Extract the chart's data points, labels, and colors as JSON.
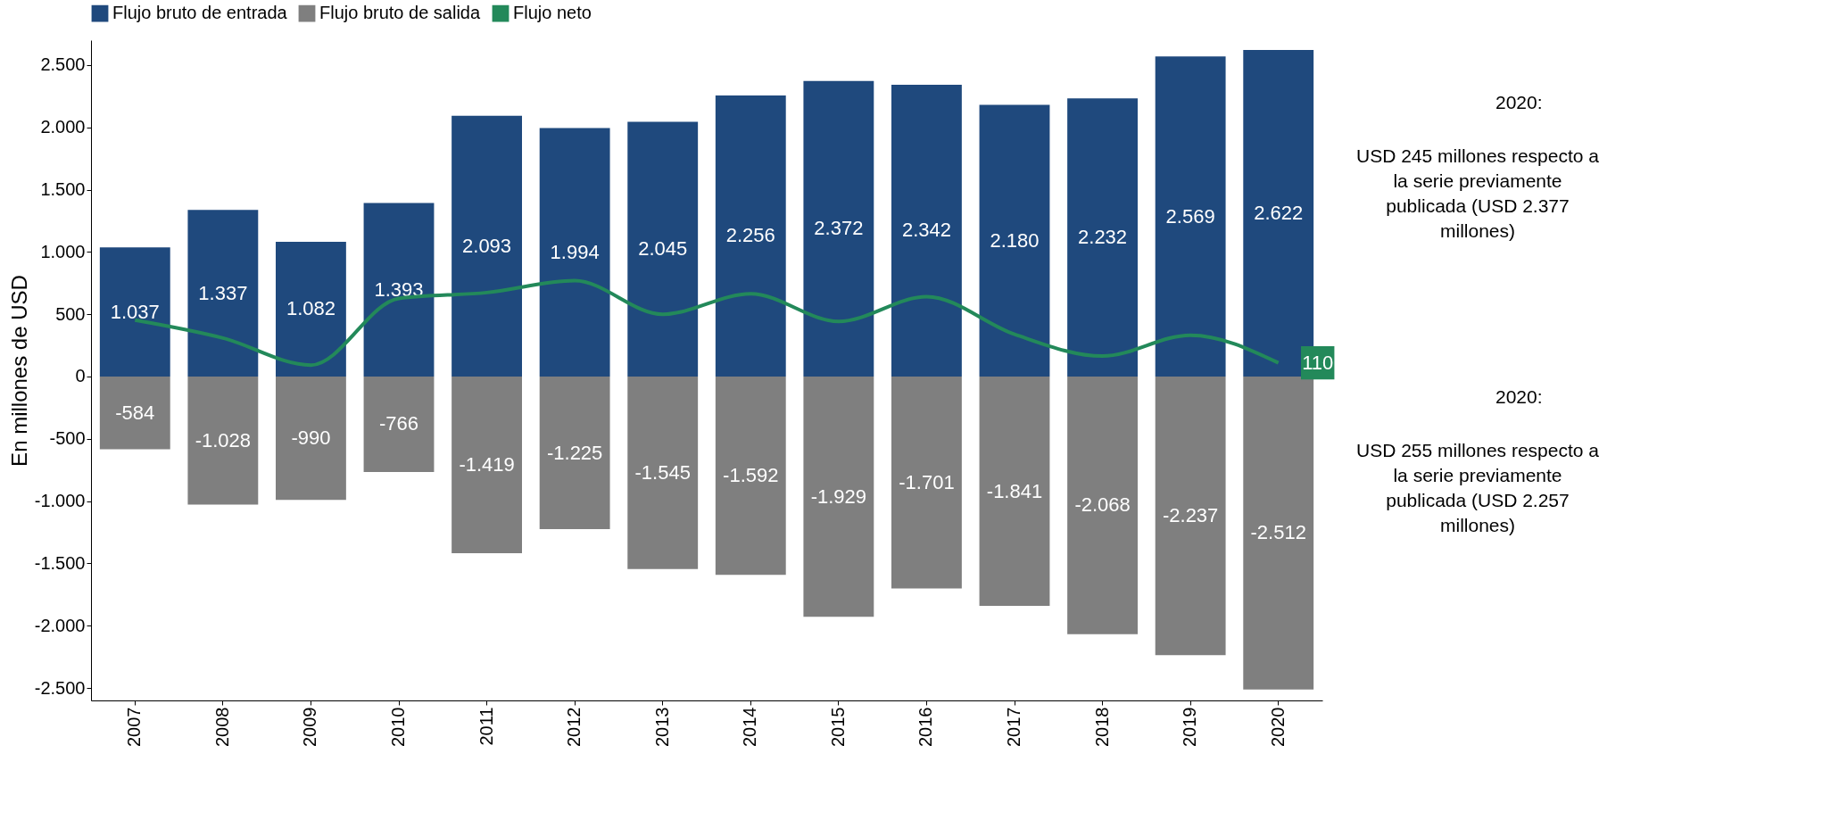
{
  "chart_data": {
    "type": "bar",
    "stacked": true,
    "ylabel": "En millones de USD",
    "categories": [
      "2007",
      "2008",
      "2009",
      "2010",
      "2011",
      "2012",
      "2013",
      "2014",
      "2015",
      "2016",
      "2017",
      "2018",
      "2019",
      "2020"
    ],
    "series": [
      {
        "name": "Flujo bruto de entrada",
        "color": "#1f497d",
        "values": [
          1037,
          1337,
          1082,
          1393,
          2093,
          1994,
          2045,
          2256,
          2372,
          2342,
          2180,
          2232,
          2569,
          2622
        ],
        "value_labels": [
          "1.037",
          "1.337",
          "1.082",
          "1.393",
          "2.093",
          "1.994",
          "2.045",
          "2.256",
          "2.372",
          "2.342",
          "2.180",
          "2.232",
          "2.569",
          "2.622"
        ]
      },
      {
        "name": "Flujo bruto de salida",
        "color": "#7f7f7f",
        "values": [
          -584,
          -1028,
          -990,
          -766,
          -1419,
          -1225,
          -1545,
          -1592,
          -1929,
          -1701,
          -1841,
          -2068,
          -2237,
          -2512
        ],
        "value_labels": [
          "-584",
          "-1.028",
          "-990",
          "-766",
          "-1.419",
          "-1.225",
          "-1.545",
          "-1.592",
          "-1.929",
          "-1.701",
          "-1.841",
          "-2.068",
          "-2.237",
          "-2.512"
        ]
      },
      {
        "name": "Flujo neto",
        "type": "line",
        "color": "#23895a",
        "values": [
          453,
          309,
          92,
          627,
          674,
          769,
          500,
          664,
          443,
          641,
          339,
          164,
          332,
          110
        ],
        "value_labels": [
          null,
          null,
          null,
          null,
          null,
          null,
          null,
          null,
          null,
          null,
          null,
          null,
          null,
          "110"
        ]
      }
    ],
    "ylim": [
      -2600,
      2700
    ],
    "yticks": [
      {
        "value": -2500,
        "label": "-2.500"
      },
      {
        "value": -2000,
        "label": "-2.000"
      },
      {
        "value": -1500,
        "label": "-1.500"
      },
      {
        "value": -1000,
        "label": "-1.000"
      },
      {
        "value": -500,
        "label": "-500"
      },
      {
        "value": 0,
        "label": "0"
      },
      {
        "value": 500,
        "label": "500"
      },
      {
        "value": 1000,
        "label": "1.000"
      },
      {
        "value": 1500,
        "label": "1.500"
      },
      {
        "value": 2000,
        "label": "2.000"
      },
      {
        "value": 2500,
        "label": "2.500"
      }
    ],
    "grid": false,
    "legend": "top",
    "line_style": "solid",
    "marker": "none",
    "annotations": [
      "2020:",
      "USD 245 millones respecto a la serie previamente publicada (USD 2.377 millones)",
      "2020:",
      "USD 255 millones respecto a la serie previamente publicada (USD 2.257 millones)"
    ]
  }
}
